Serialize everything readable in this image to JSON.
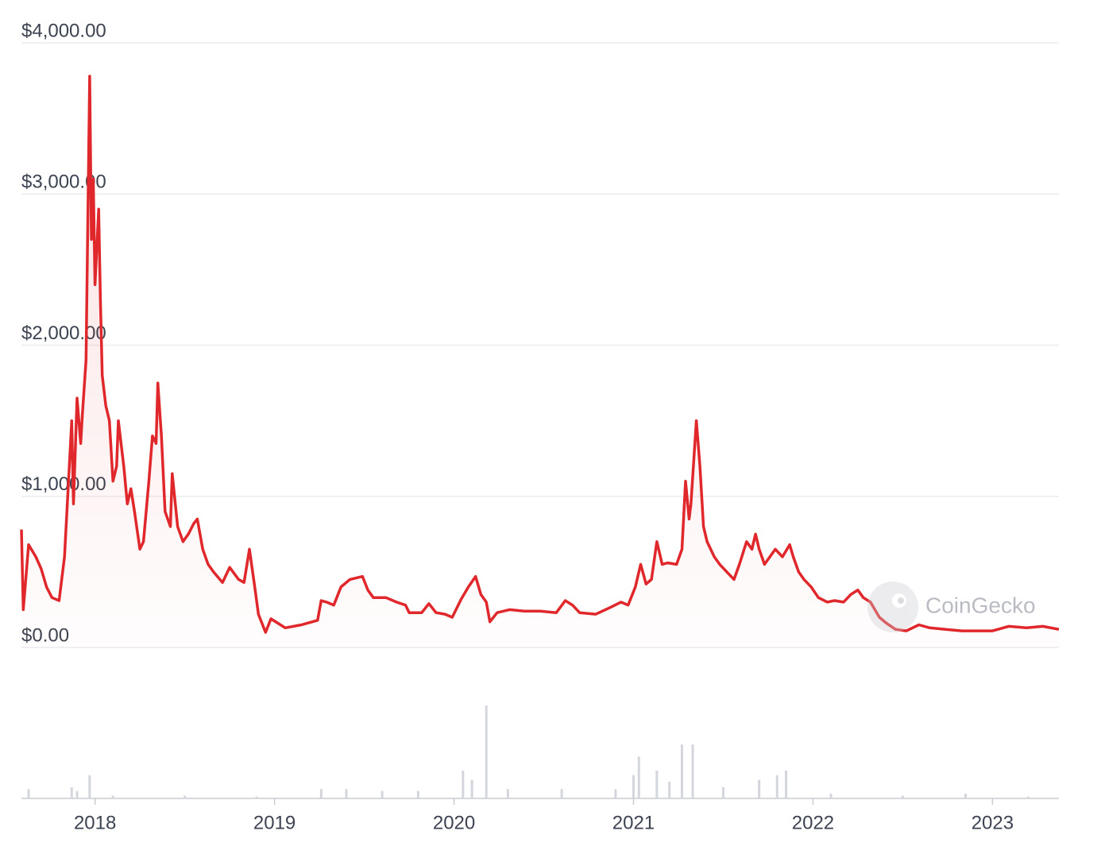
{
  "chart_data": {
    "type": "line",
    "color": "#e0282c",
    "watermark": "CoinGecko",
    "grid": true,
    "x": [
      2017.59,
      2017.6,
      2017.63,
      2017.67,
      2017.7,
      2017.73,
      2017.76,
      2017.8,
      2017.83,
      2017.87,
      2017.88,
      2017.9,
      2017.92,
      2017.93,
      2017.95,
      2017.97,
      2017.98,
      2017.99,
      2018.0,
      2018.02,
      2018.03,
      2018.04,
      2018.06,
      2018.08,
      2018.1,
      2018.12,
      2018.13,
      2018.16,
      2018.18,
      2018.2,
      2018.22,
      2018.25,
      2018.27,
      2018.3,
      2018.32,
      2018.34,
      2018.35,
      2018.37,
      2018.39,
      2018.42,
      2018.43,
      2018.46,
      2018.49,
      2018.52,
      2018.55,
      2018.57,
      2018.6,
      2018.63,
      2018.66,
      2018.71,
      2018.75,
      2018.8,
      2018.83,
      2018.86,
      2018.89,
      2018.91,
      2018.95,
      2018.98,
      2019.02,
      2019.06,
      2019.15,
      2019.24,
      2019.26,
      2019.29,
      2019.33,
      2019.37,
      2019.42,
      2019.49,
      2019.52,
      2019.55,
      2019.62,
      2019.68,
      2019.73,
      2019.75,
      2019.82,
      2019.86,
      2019.9,
      2019.95,
      2019.99,
      2020.04,
      2020.08,
      2020.12,
      2020.15,
      2020.18,
      2020.2,
      2020.24,
      2020.31,
      2020.39,
      2020.48,
      2020.57,
      2020.62,
      2020.66,
      2020.7,
      2020.79,
      2020.88,
      2020.93,
      2020.97,
      2021.01,
      2021.04,
      2021.07,
      2021.1,
      2021.13,
      2021.16,
      2021.19,
      2021.24,
      2021.27,
      2021.29,
      2021.31,
      2021.32,
      2021.35,
      2021.37,
      2021.39,
      2021.41,
      2021.45,
      2021.48,
      2021.52,
      2021.56,
      2021.59,
      2021.63,
      2021.66,
      2021.68,
      2021.7,
      2021.73,
      2021.76,
      2021.79,
      2021.83,
      2021.87,
      2021.89,
      2021.92,
      2021.95,
      2021.99,
      2022.03,
      2022.08,
      2022.12,
      2022.17,
      2022.21,
      2022.25,
      2022.28,
      2022.32,
      2022.37,
      2022.41,
      2022.46,
      2022.52,
      2022.59,
      2022.65,
      2022.74,
      2022.83,
      2022.92,
      2023.0,
      2023.09,
      2023.19,
      2023.28,
      2023.37
    ],
    "values": [
      780,
      250,
      680,
      600,
      520,
      400,
      330,
      310,
      600,
      1500,
      950,
      1650,
      1350,
      1550,
      1900,
      3780,
      2700,
      3100,
      2400,
      2900,
      2300,
      1800,
      1600,
      1500,
      1100,
      1200,
      1500,
      1200,
      950,
      1050,
      900,
      650,
      700,
      1100,
      1400,
      1350,
      1750,
      1400,
      900,
      800,
      1150,
      800,
      700,
      750,
      820,
      850,
      650,
      550,
      500,
      430,
      530,
      450,
      430,
      650,
      400,
      220,
      100,
      190,
      160,
      130,
      150,
      180,
      310,
      300,
      280,
      400,
      450,
      470,
      380,
      330,
      330,
      300,
      280,
      230,
      230,
      290,
      230,
      220,
      200,
      320,
      400,
      470,
      350,
      300,
      170,
      230,
      250,
      240,
      240,
      230,
      310,
      280,
      230,
      220,
      270,
      300,
      280,
      400,
      550,
      420,
      450,
      700,
      550,
      560,
      550,
      650,
      1100,
      850,
      950,
      1500,
      1200,
      800,
      700,
      600,
      550,
      500,
      450,
      550,
      700,
      650,
      750,
      650,
      550,
      600,
      650,
      600,
      680,
      600,
      500,
      450,
      400,
      330,
      300,
      310,
      300,
      350,
      380,
      330,
      300,
      200,
      160,
      120,
      110,
      150,
      130,
      120,
      110,
      110,
      110,
      140,
      130,
      140,
      120
    ],
    "xlim": [
      2017.59,
      2023.37
    ],
    "xticks": [
      2018,
      2019,
      2020,
      2021,
      2022,
      2023
    ],
    "ylim": [
      0,
      4000
    ],
    "yticks": [
      {
        "value": 0,
        "label": "$0.00"
      },
      {
        "value": 1000,
        "label": "$1,000.00"
      },
      {
        "value": 2000,
        "label": "$2,000.00"
      },
      {
        "value": 3000,
        "label": "$3,000.00"
      },
      {
        "value": 4000,
        "label": "$4,000.00"
      }
    ],
    "volume": {
      "color": "#d3d6dd",
      "ylim": [
        0,
        100
      ],
      "x": [
        2017.63,
        2017.87,
        2017.9,
        2017.97,
        2018.1,
        2018.5,
        2018.9,
        2019.26,
        2019.4,
        2019.6,
        2019.8,
        2020.05,
        2020.1,
        2020.18,
        2020.3,
        2020.6,
        2020.9,
        2021.0,
        2021.03,
        2021.13,
        2021.2,
        2021.27,
        2021.33,
        2021.5,
        2021.7,
        2021.8,
        2021.85,
        2022.1,
        2022.5,
        2022.85,
        2023.2
      ],
      "values": [
        10,
        12,
        8,
        25,
        3,
        3,
        2,
        10,
        10,
        8,
        8,
        30,
        20,
        100,
        10,
        10,
        10,
        25,
        45,
        30,
        18,
        58,
        58,
        12,
        20,
        25,
        30,
        5,
        3,
        5,
        2
      ]
    }
  }
}
